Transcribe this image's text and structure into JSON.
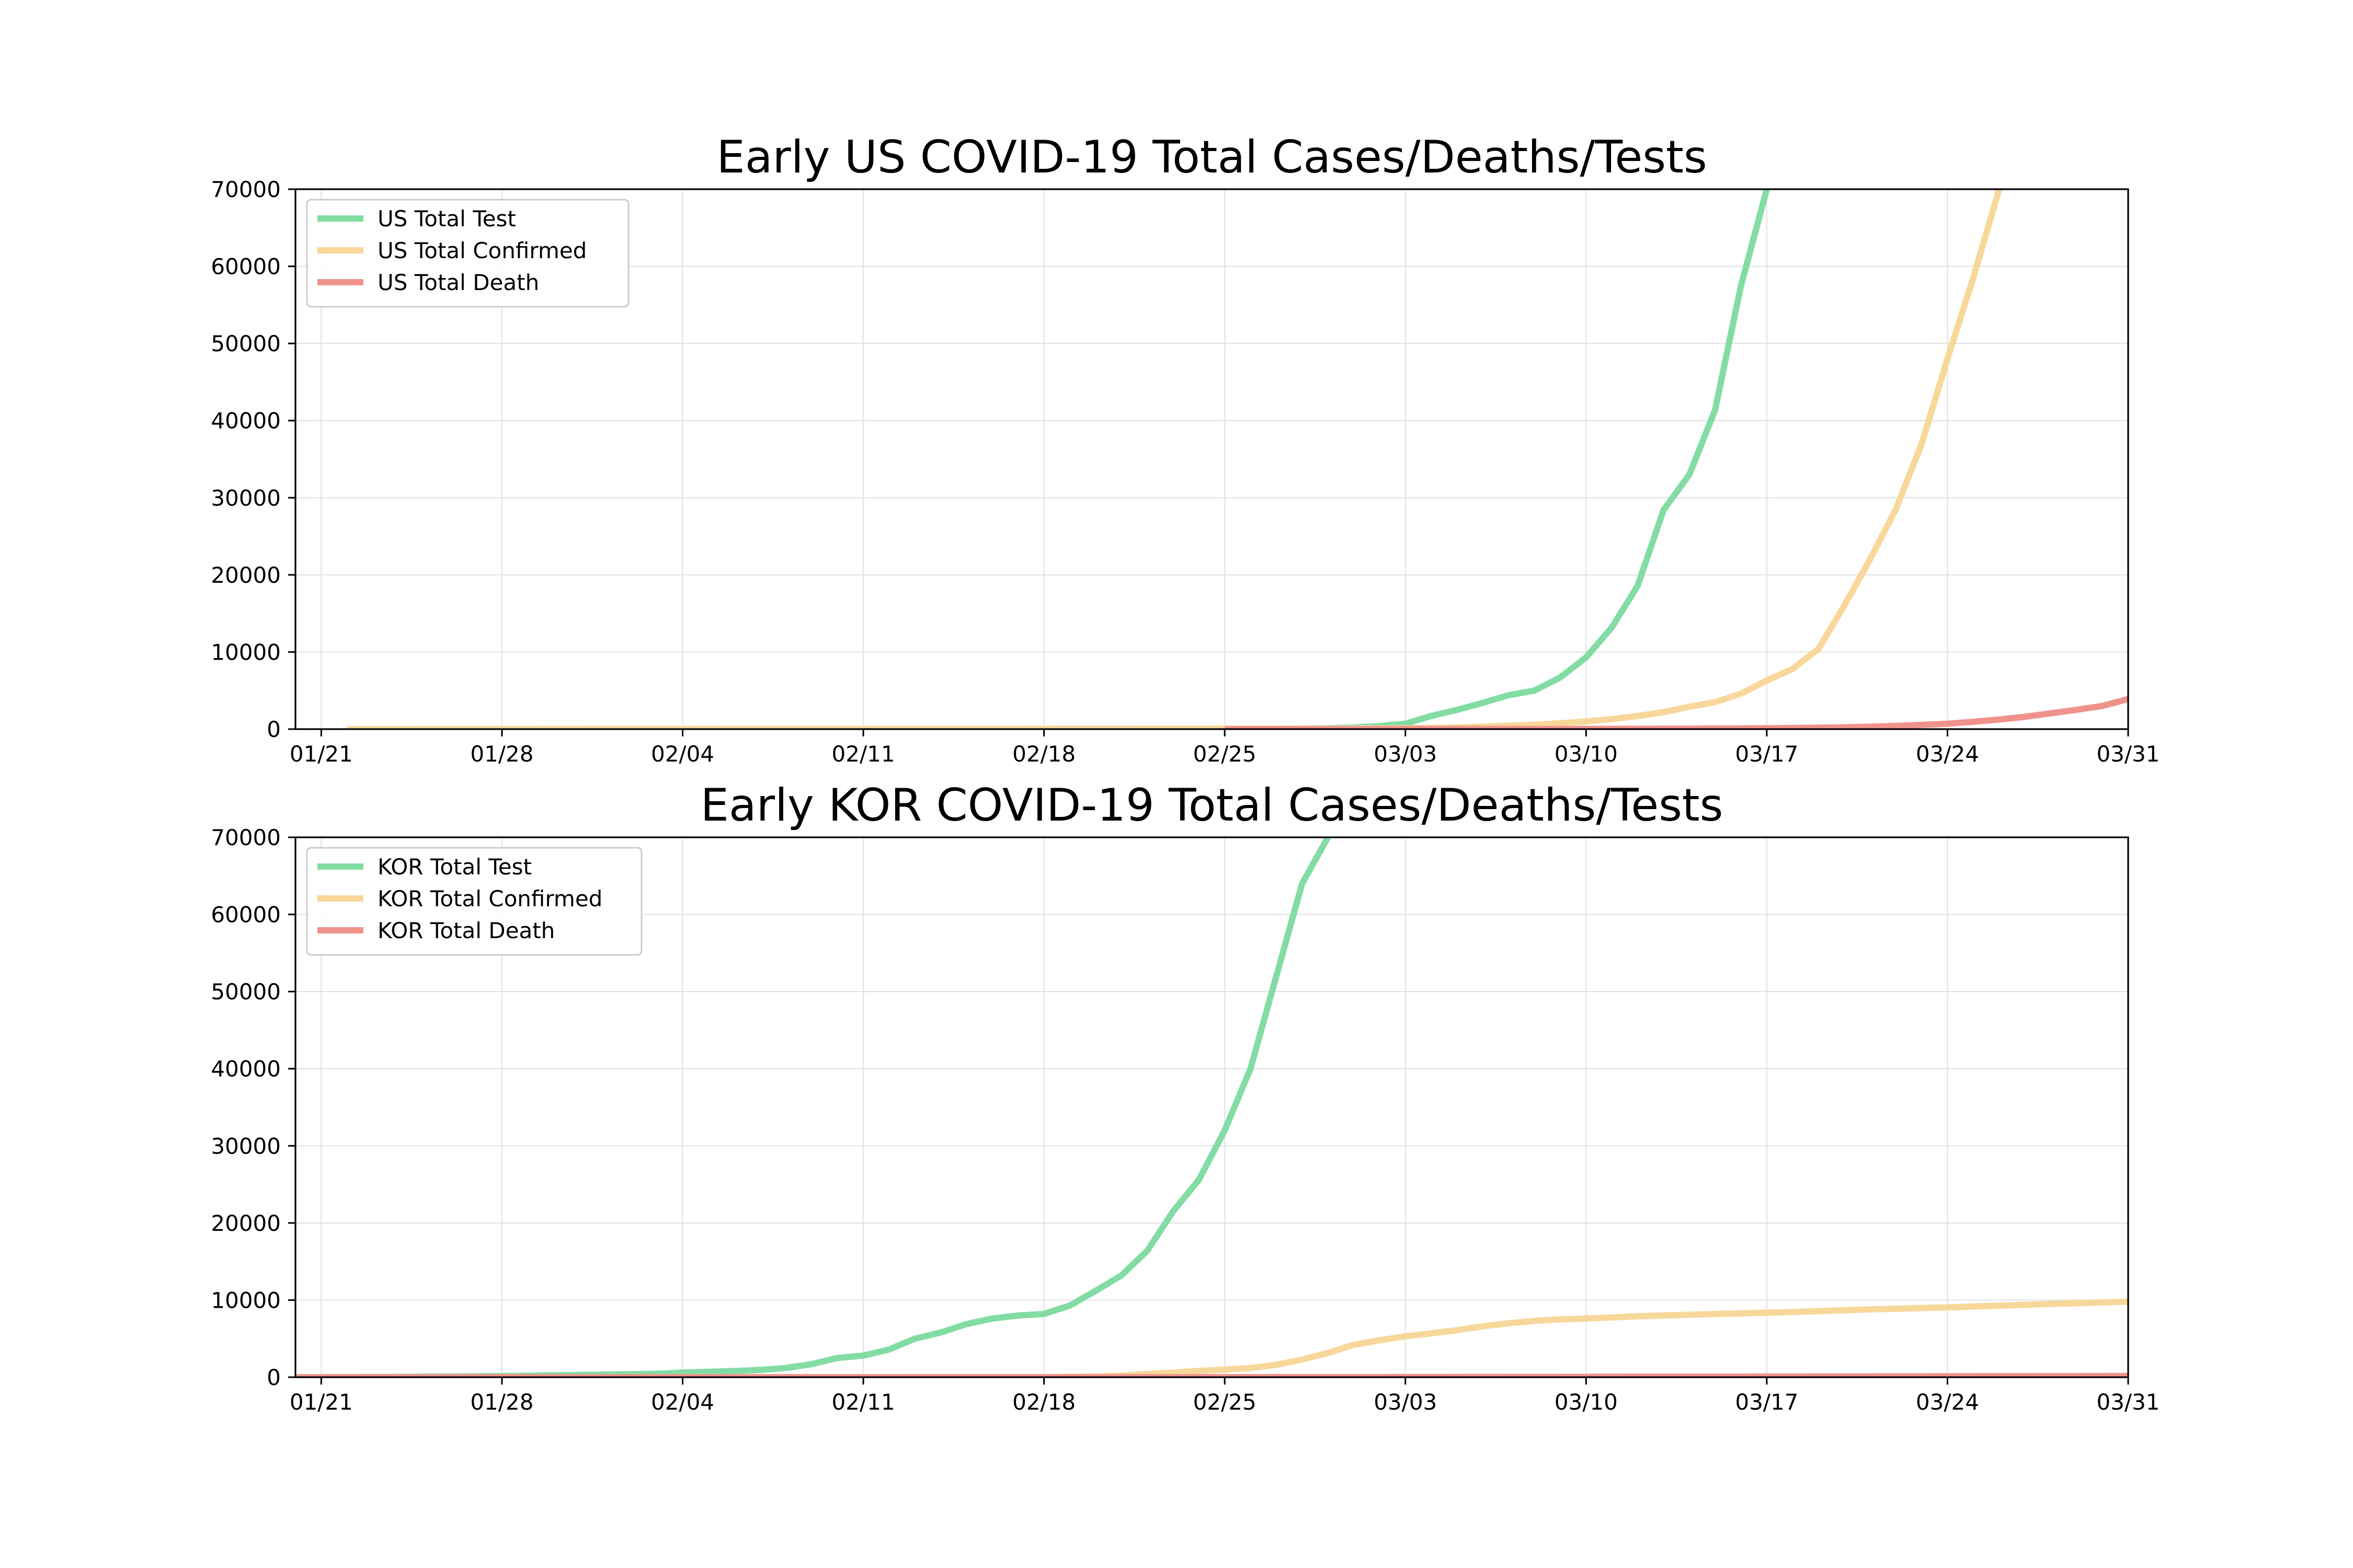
{
  "chart_data": [
    {
      "type": "line",
      "title": "Early US COVID-19 Total Cases/Deaths/Tests",
      "xlabel": "",
      "ylabel": "",
      "x_tick_labels": [
        "01/21",
        "01/28",
        "02/04",
        "02/11",
        "02/18",
        "02/25",
        "03/03",
        "03/10",
        "03/17",
        "03/24",
        "03/31"
      ],
      "y_tick_labels": [
        "0",
        "10000",
        "20000",
        "30000",
        "40000",
        "50000",
        "60000",
        "70000"
      ],
      "xlim": [
        "2020-01-20",
        "2020-03-31"
      ],
      "ylim": [
        0,
        70000
      ],
      "grid": true,
      "legend_position": "upper-left",
      "series": [
        {
          "name": "US Total Test",
          "color": "#82dca4",
          "points": [
            [
              "2020-02-27",
              0
            ],
            [
              "2020-02-28",
              60
            ],
            [
              "2020-02-29",
              120
            ],
            [
              "2020-03-01",
              200
            ],
            [
              "2020-03-02",
              400
            ],
            [
              "2020-03-03",
              700
            ],
            [
              "2020-03-04",
              1700
            ],
            [
              "2020-03-05",
              2500
            ],
            [
              "2020-03-06",
              3400
            ],
            [
              "2020-03-07",
              4400
            ],
            [
              "2020-03-08",
              5000
            ],
            [
              "2020-03-09",
              6700
            ],
            [
              "2020-03-10",
              9300
            ],
            [
              "2020-03-11",
              13200
            ],
            [
              "2020-03-12",
              18600
            ],
            [
              "2020-03-13",
              28400
            ],
            [
              "2020-03-14",
              33000
            ],
            [
              "2020-03-15",
              41400
            ],
            [
              "2020-03-16",
              57500
            ],
            [
              "2020-03-17",
              70000
            ]
          ]
        },
        {
          "name": "US Total Confirmed",
          "color": "#f8d79a",
          "points": [
            [
              "2020-01-22",
              1
            ],
            [
              "2020-02-24",
              50
            ],
            [
              "2020-02-27",
              60
            ],
            [
              "2020-03-01",
              75
            ],
            [
              "2020-03-02",
              100
            ],
            [
              "2020-03-03",
              125
            ],
            [
              "2020-03-04",
              160
            ],
            [
              "2020-03-05",
              220
            ],
            [
              "2020-03-06",
              320
            ],
            [
              "2020-03-07",
              440
            ],
            [
              "2020-03-08",
              560
            ],
            [
              "2020-03-09",
              750
            ],
            [
              "2020-03-10",
              1000
            ],
            [
              "2020-03-11",
              1300
            ],
            [
              "2020-03-12",
              1700
            ],
            [
              "2020-03-13",
              2200
            ],
            [
              "2020-03-14",
              2900
            ],
            [
              "2020-03-15",
              3500
            ],
            [
              "2020-03-16",
              4600
            ],
            [
              "2020-03-17",
              6300
            ],
            [
              "2020-03-18",
              7800
            ],
            [
              "2020-03-19",
              10400
            ],
            [
              "2020-03-20",
              16000
            ],
            [
              "2020-03-21",
              22000
            ],
            [
              "2020-03-22",
              28500
            ],
            [
              "2020-03-23",
              37000
            ],
            [
              "2020-03-24",
              48000
            ],
            [
              "2020-03-25",
              58500
            ],
            [
              "2020-03-26",
              70000
            ]
          ]
        },
        {
          "name": "US Total Death",
          "color": "#f0928c",
          "points": [
            [
              "2020-02-25",
              0
            ],
            [
              "2020-03-01",
              1
            ],
            [
              "2020-03-05",
              11
            ],
            [
              "2020-03-10",
              30
            ],
            [
              "2020-03-14",
              60
            ],
            [
              "2020-03-17",
              110
            ],
            [
              "2020-03-19",
              180
            ],
            [
              "2020-03-20",
              240
            ],
            [
              "2020-03-21",
              310
            ],
            [
              "2020-03-22",
              410
            ],
            [
              "2020-03-23",
              550
            ],
            [
              "2020-03-24",
              700
            ],
            [
              "2020-03-25",
              950
            ],
            [
              "2020-03-26",
              1250
            ],
            [
              "2020-03-27",
              1600
            ],
            [
              "2020-03-28",
              2050
            ],
            [
              "2020-03-29",
              2500
            ],
            [
              "2020-03-30",
              3000
            ],
            [
              "2020-03-31",
              3900
            ]
          ]
        }
      ]
    },
    {
      "type": "line",
      "title": "Early KOR COVID-19 Total Cases/Deaths/Tests",
      "xlabel": "",
      "ylabel": "",
      "x_tick_labels": [
        "01/21",
        "01/28",
        "02/04",
        "02/11",
        "02/18",
        "02/25",
        "03/03",
        "03/10",
        "03/17",
        "03/24",
        "03/31"
      ],
      "y_tick_labels": [
        "0",
        "10000",
        "20000",
        "30000",
        "40000",
        "50000",
        "60000",
        "70000"
      ],
      "xlim": [
        "2020-01-20",
        "2020-03-31"
      ],
      "ylim": [
        0,
        70000
      ],
      "grid": true,
      "legend_position": "upper-left",
      "series": [
        {
          "name": "KOR Total Test",
          "color": "#82dca4",
          "points": [
            [
              "2020-01-20",
              0
            ],
            [
              "2020-01-24",
              40
            ],
            [
              "2020-01-28",
              150
            ],
            [
              "2020-01-31",
              300
            ],
            [
              "2020-02-03",
              450
            ],
            [
              "2020-02-04",
              600
            ],
            [
              "2020-02-06",
              800
            ],
            [
              "2020-02-07",
              950
            ],
            [
              "2020-02-08",
              1200
            ],
            [
              "2020-02-09",
              1700
            ],
            [
              "2020-02-10",
              2500
            ],
            [
              "2020-02-11",
              2800
            ],
            [
              "2020-02-12",
              3600
            ],
            [
              "2020-02-13",
              5000
            ],
            [
              "2020-02-14",
              5800
            ],
            [
              "2020-02-15",
              6900
            ],
            [
              "2020-02-16",
              7600
            ],
            [
              "2020-02-17",
              8000
            ],
            [
              "2020-02-18",
              8200
            ],
            [
              "2020-02-19",
              9300
            ],
            [
              "2020-02-20",
              11200
            ],
            [
              "2020-02-21",
              13200
            ],
            [
              "2020-02-22",
              16400
            ],
            [
              "2020-02-23",
              21500
            ],
            [
              "2020-02-24",
              25600
            ],
            [
              "2020-02-25",
              32000
            ],
            [
              "2020-02-26",
              40000
            ],
            [
              "2020-02-27",
              52000
            ],
            [
              "2020-02-28",
              64000
            ],
            [
              "2020-02-29",
              70000
            ]
          ]
        },
        {
          "name": "KOR Total Confirmed",
          "color": "#f8d79a",
          "points": [
            [
              "2020-01-20",
              0
            ],
            [
              "2020-02-18",
              30
            ],
            [
              "2020-02-20",
              100
            ],
            [
              "2020-02-21",
              200
            ],
            [
              "2020-02-22",
              430
            ],
            [
              "2020-02-23",
              600
            ],
            [
              "2020-02-24",
              830
            ],
            [
              "2020-02-25",
              980
            ],
            [
              "2020-02-26",
              1200
            ],
            [
              "2020-02-27",
              1600
            ],
            [
              "2020-02-28",
              2300
            ],
            [
              "2020-02-29",
              3150
            ],
            [
              "2020-03-01",
              4200
            ],
            [
              "2020-03-02",
              4800
            ],
            [
              "2020-03-03",
              5300
            ],
            [
              "2020-03-04",
              5700
            ],
            [
              "2020-03-05",
              6100
            ],
            [
              "2020-03-06",
              6600
            ],
            [
              "2020-03-07",
              7000
            ],
            [
              "2020-03-08",
              7300
            ],
            [
              "2020-03-09",
              7500
            ],
            [
              "2020-03-10",
              7600
            ],
            [
              "2020-03-12",
              7900
            ],
            [
              "2020-03-15",
              8200
            ],
            [
              "2020-03-18",
              8450
            ],
            [
              "2020-03-21",
              8800
            ],
            [
              "2020-03-24",
              9050
            ],
            [
              "2020-03-28",
              9500
            ],
            [
              "2020-03-31",
              9800
            ]
          ]
        },
        {
          "name": "KOR Total Death",
          "color": "#f0928c",
          "points": [
            [
              "2020-01-20",
              0
            ],
            [
              "2020-02-20",
              1
            ],
            [
              "2020-03-01",
              20
            ],
            [
              "2020-03-10",
              54
            ],
            [
              "2020-03-20",
              100
            ],
            [
              "2020-03-31",
              165
            ]
          ]
        }
      ]
    }
  ]
}
